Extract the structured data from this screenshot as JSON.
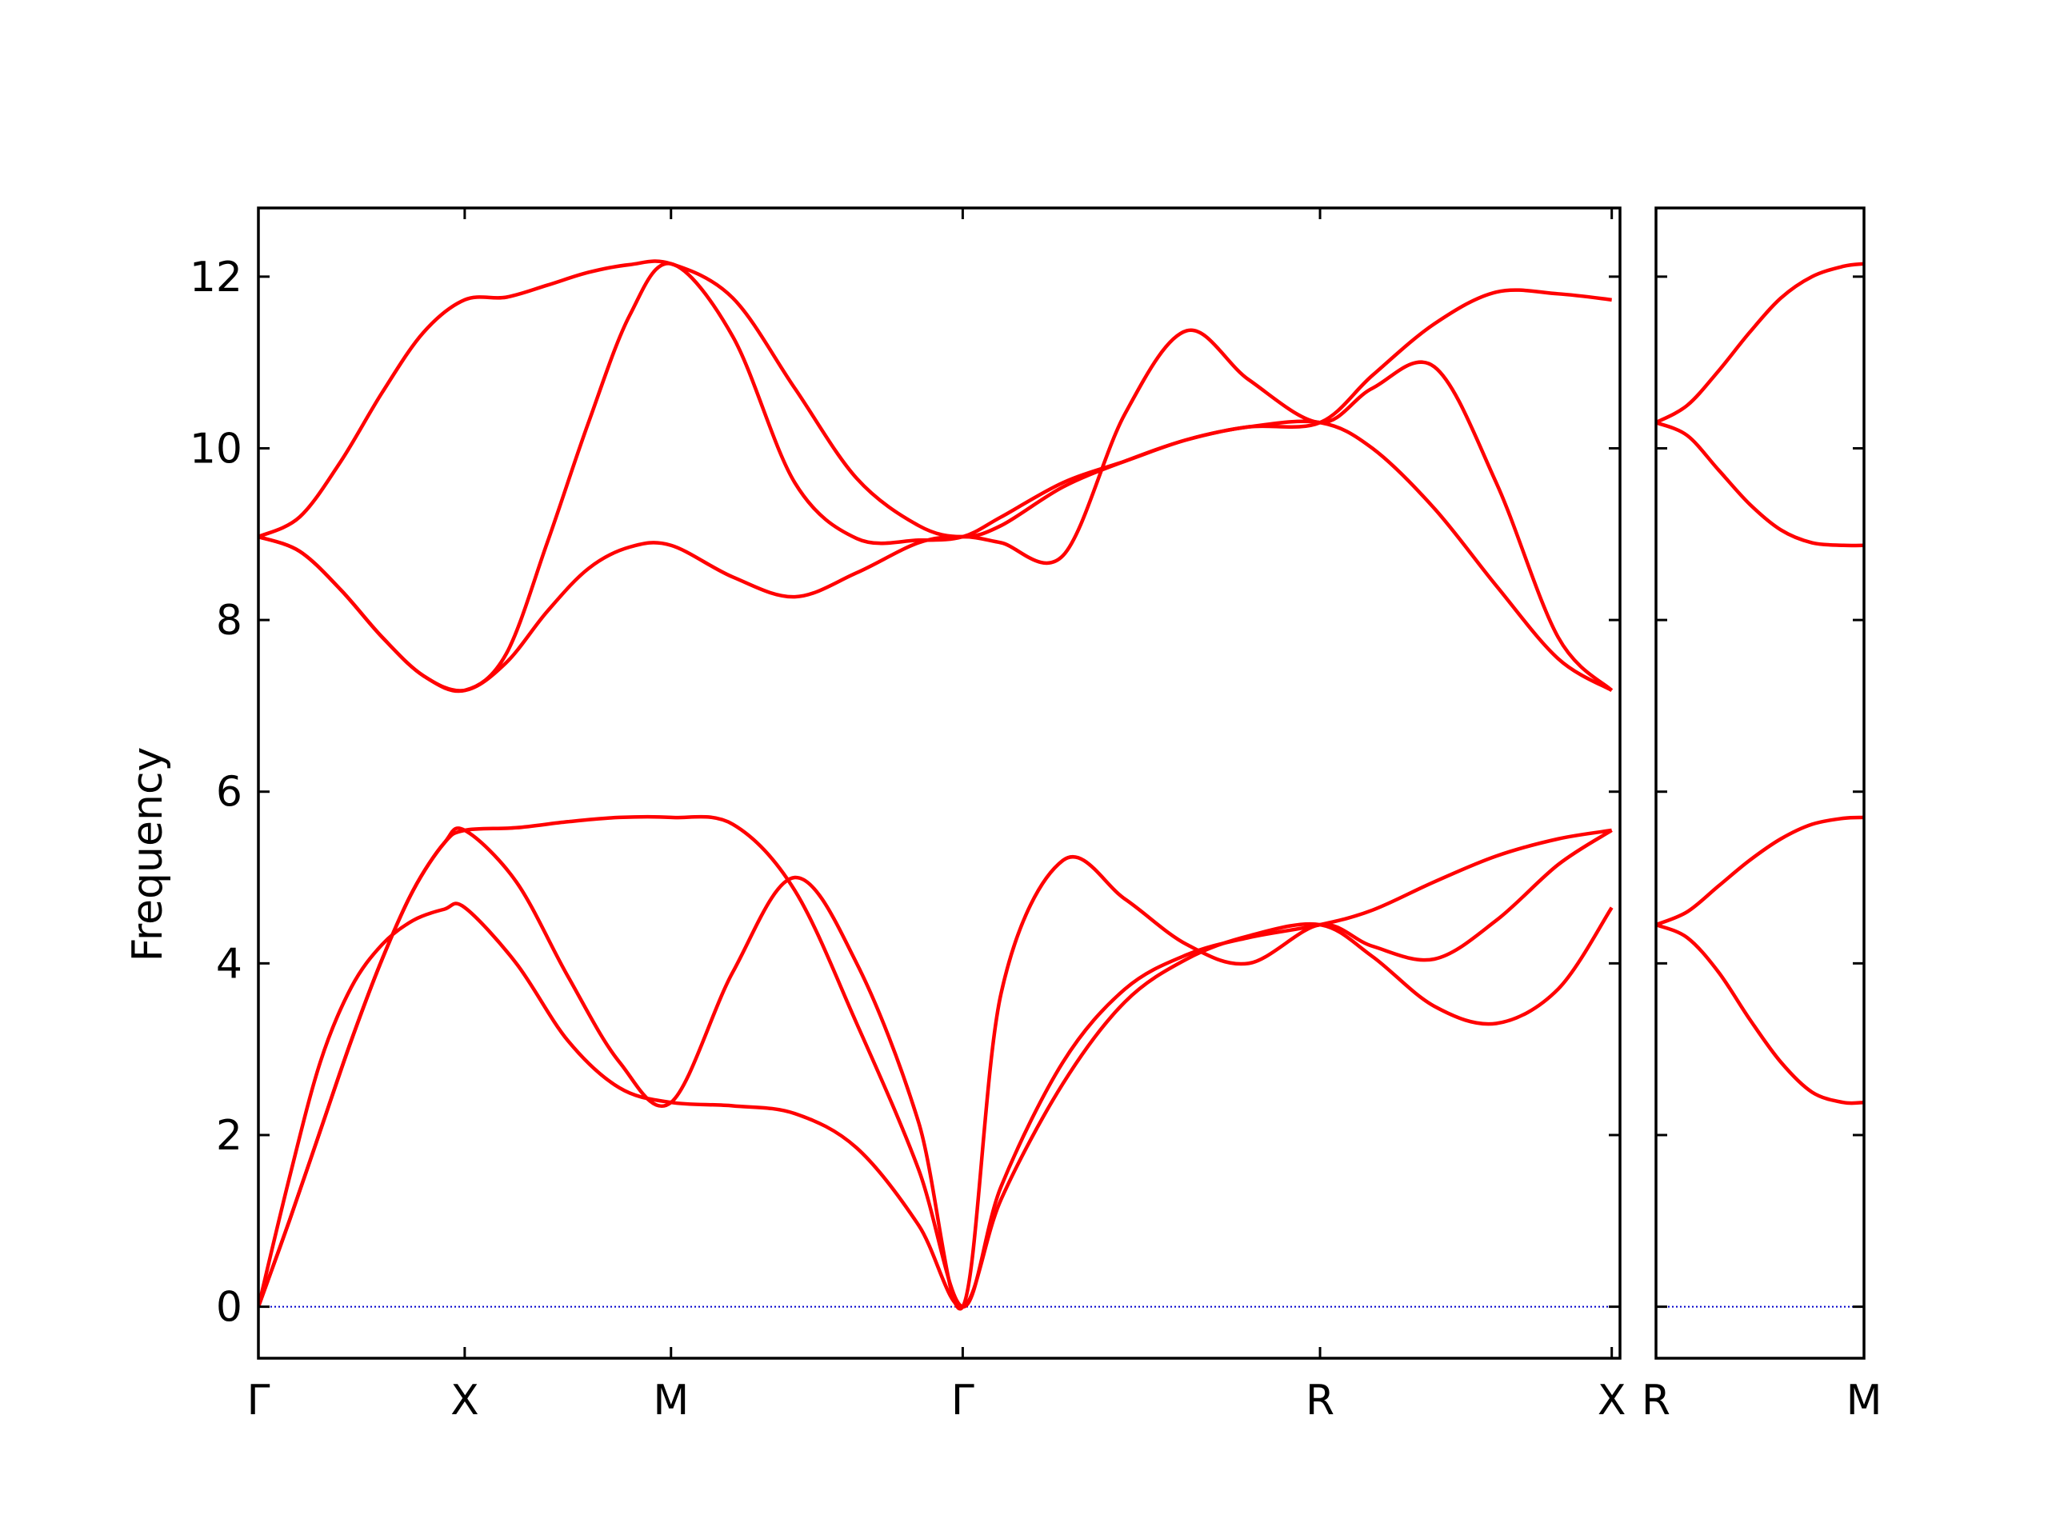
{
  "chart_data": {
    "type": "line",
    "title": "",
    "ylabel": "Frequency",
    "xlabel": "",
    "ylim": [
      -0.6,
      12.8
    ],
    "yticks": [
      0,
      2,
      4,
      6,
      8,
      10,
      12
    ],
    "grid": false,
    "legend": "none",
    "colors": {
      "bands": "#ff0000",
      "zero_line": "#0000cc",
      "axes": "#000000"
    },
    "panels": [
      {
        "name": "main",
        "x_range": [
          0,
          6.6
        ],
        "ticks": [
          {
            "label": "Γ",
            "x": 0.0
          },
          {
            "label": "X",
            "x": 1.0
          },
          {
            "label": "M",
            "x": 2.0
          },
          {
            "label": "Γ",
            "x": 3.414
          },
          {
            "label": "R",
            "x": 5.146
          },
          {
            "label": "X",
            "x": 6.56
          }
        ],
        "series": [
          {
            "x": [
              0,
              0.15,
              0.3,
              0.45,
              0.6,
              0.75,
              0.9,
              1.0,
              1.25,
              1.5,
              1.75,
              2.0,
              2.3,
              2.6,
              2.9,
              3.2,
              3.414,
              3.6,
              3.9,
              4.2,
              4.5,
              4.8,
              5.146,
              5.4,
              5.7,
              6.0,
              6.3,
              6.56
            ],
            "y": [
              0,
              1.5,
              2.85,
              3.72,
              4.22,
              4.5,
              4.63,
              4.65,
              4.0,
              3.1,
              2.55,
              2.38,
              2.34,
              2.25,
              1.85,
              0.95,
              0,
              1.25,
              2.6,
              3.55,
              4.05,
              4.32,
              4.45,
              4.08,
              3.5,
              3.3,
              3.7,
              4.65
            ]
          },
          {
            "x": [
              0,
              0.15,
              0.3,
              0.45,
              0.6,
              0.75,
              0.9,
              1.0,
              1.25,
              1.5,
              1.75,
              2.0,
              2.3,
              2.6,
              2.9,
              3.2,
              3.414,
              3.6,
              3.9,
              4.2,
              4.5,
              4.8,
              5.146,
              5.4,
              5.7,
              6.0,
              6.3,
              6.56
            ],
            "y": [
              0,
              1.0,
              2.05,
              3.1,
              4.05,
              4.85,
              5.4,
              5.55,
              4.95,
              3.85,
              2.85,
              2.38,
              3.9,
              5.0,
              4.0,
              2.15,
              0,
              3.65,
              5.2,
              4.75,
              4.22,
              4.0,
              4.45,
              4.2,
              4.05,
              4.5,
              5.15,
              5.55
            ]
          },
          {
            "x": [
              0,
              0.15,
              0.3,
              0.45,
              0.6,
              0.75,
              0.9,
              1.0,
              1.25,
              1.5,
              1.75,
              2.0,
              2.3,
              2.6,
              2.9,
              3.2,
              3.414,
              3.6,
              3.9,
              4.2,
              4.5,
              4.8,
              5.146,
              5.4,
              5.7,
              6.0,
              6.3,
              6.56
            ],
            "y": [
              0,
              1.0,
              2.05,
              3.1,
              4.05,
              4.85,
              5.4,
              5.55,
              5.58,
              5.65,
              5.7,
              5.7,
              5.62,
              4.85,
              3.3,
              1.6,
              0,
              1.4,
              2.85,
              3.7,
              4.1,
              4.3,
              4.45,
              4.62,
              4.95,
              5.25,
              5.45,
              5.55
            ]
          },
          {
            "x": [
              0,
              0.2,
              0.4,
              0.6,
              0.8,
              1.0,
              1.2,
              1.4,
              1.6,
              1.8,
              2.0,
              2.3,
              2.6,
              2.9,
              3.2,
              3.414,
              3.6,
              3.9,
              4.2,
              4.5,
              4.8,
              5.146,
              5.4,
              5.7,
              6.0,
              6.3,
              6.56
            ],
            "y": [
              8.97,
              8.8,
              8.35,
              7.8,
              7.35,
              7.18,
              7.5,
              8.1,
              8.6,
              8.85,
              8.87,
              8.5,
              8.27,
              8.55,
              8.9,
              8.97,
              8.9,
              8.75,
              10.4,
              11.37,
              10.8,
              10.3,
              10.7,
              10.95,
              9.6,
              7.8,
              7.18
            ]
          },
          {
            "x": [
              0,
              0.2,
              0.4,
              0.6,
              0.8,
              1.0,
              1.2,
              1.4,
              1.6,
              1.8,
              2.0,
              2.3,
              2.6,
              2.9,
              3.2,
              3.414,
              3.6,
              3.9,
              4.2,
              4.5,
              4.8,
              5.146,
              5.4,
              5.7,
              6.0,
              6.3,
              6.56
            ],
            "y": [
              8.97,
              8.8,
              8.35,
              7.8,
              7.35,
              7.18,
              7.6,
              8.9,
              10.3,
              11.55,
              12.15,
              11.3,
              9.6,
              8.95,
              8.93,
              8.97,
              9.2,
              9.6,
              9.85,
              10.1,
              10.25,
              10.3,
              10.0,
              9.3,
              8.4,
              7.55,
              7.18
            ]
          },
          {
            "x": [
              0,
              0.2,
              0.4,
              0.6,
              0.8,
              1.0,
              1.2,
              1.4,
              1.6,
              1.8,
              2.0,
              2.3,
              2.6,
              2.9,
              3.2,
              3.414,
              3.6,
              3.9,
              4.2,
              4.5,
              4.8,
              5.146,
              5.4,
              5.7,
              6.0,
              6.3,
              6.56
            ],
            "y": [
              8.97,
              9.2,
              9.85,
              10.65,
              11.35,
              11.73,
              11.76,
              11.9,
              12.05,
              12.14,
              12.15,
              11.75,
              10.7,
              9.65,
              9.1,
              8.97,
              9.1,
              9.55,
              9.85,
              10.1,
              10.25,
              10.3,
              10.85,
              11.45,
              11.82,
              11.8,
              11.73
            ]
          }
        ]
      },
      {
        "name": "segment",
        "x_range": [
          0,
          1.0
        ],
        "ticks": [
          {
            "label": "R",
            "x": 0.0
          },
          {
            "label": "M",
            "x": 1.0
          }
        ],
        "series": [
          {
            "x": [
              0,
              0.15,
              0.3,
              0.45,
              0.6,
              0.75,
              0.9,
              1.0
            ],
            "y": [
              4.45,
              4.3,
              3.9,
              3.35,
              2.85,
              2.5,
              2.38,
              2.38
            ]
          },
          {
            "x": [
              0,
              0.15,
              0.3,
              0.45,
              0.6,
              0.75,
              0.9,
              1.0
            ],
            "y": [
              4.45,
              4.6,
              4.9,
              5.2,
              5.45,
              5.62,
              5.69,
              5.7
            ]
          },
          {
            "x": [
              0,
              0.15,
              0.3,
              0.45,
              0.6,
              0.75,
              0.9,
              1.0
            ],
            "y": [
              10.3,
              10.15,
              9.75,
              9.35,
              9.05,
              8.9,
              8.87,
              8.87
            ]
          },
          {
            "x": [
              0,
              0.15,
              0.3,
              0.45,
              0.6,
              0.75,
              0.9,
              1.0
            ],
            "y": [
              10.3,
              10.5,
              10.9,
              11.35,
              11.75,
              12.0,
              12.12,
              12.15
            ]
          }
        ]
      }
    ]
  }
}
